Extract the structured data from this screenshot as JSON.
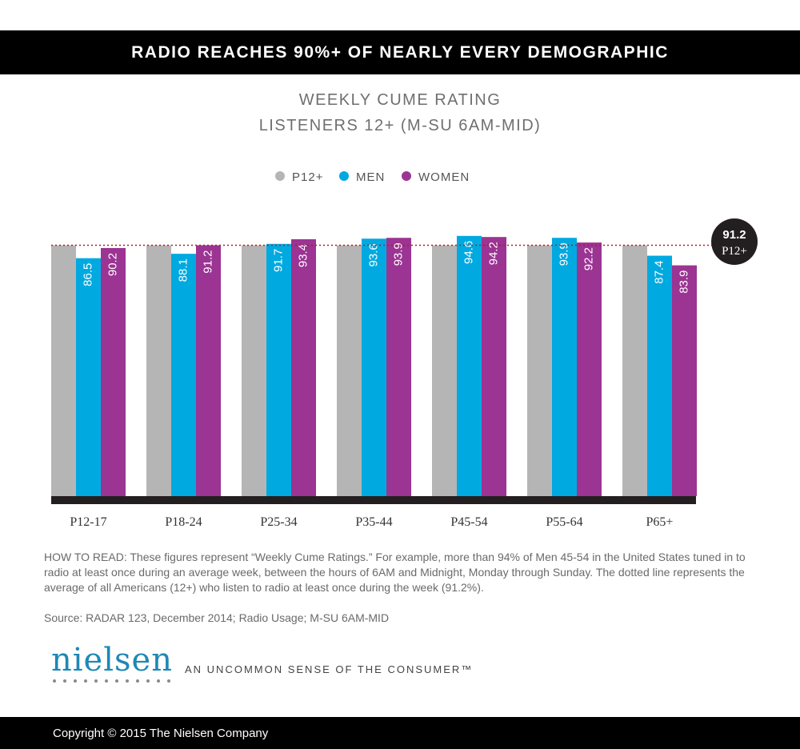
{
  "header": {
    "banner": "RADIO REACHES 90%+ OF NEARLY EVERY DEMOGRAPHIC"
  },
  "chart_data": {
    "type": "bar",
    "title": "WEEKLY CUME RATING",
    "subtitle": "LISTENERS 12+ (M-SU 6AM-MID)",
    "categories": [
      "P12-17",
      "P18-24",
      "P25-34",
      "P35-44",
      "P45-54",
      "P55-64",
      "P65+"
    ],
    "series": [
      {
        "name": "P12+",
        "color": "#b5b5b5",
        "values": [
          91.2,
          91.2,
          91.2,
          91.2,
          91.2,
          91.2,
          91.2
        ],
        "labels_shown": false
      },
      {
        "name": "MEN",
        "color": "#00a9e0",
        "values": [
          86.5,
          88.1,
          91.7,
          93.6,
          94.6,
          93.9,
          87.4
        ],
        "labels_shown": true
      },
      {
        "name": "WOMEN",
        "color": "#9b3493",
        "values": [
          90.2,
          91.2,
          93.4,
          93.9,
          94.2,
          92.2,
          83.9
        ],
        "labels_shown": true
      }
    ],
    "reference_line": {
      "value": 91.2,
      "label_value": "91.2",
      "label_text": "P12+",
      "color": "#b01e23"
    },
    "ylim": [
      0,
      96
    ],
    "xlabel": "",
    "ylabel": "",
    "legend_position": "top-center",
    "grid": false
  },
  "notes": {
    "how_to_read": "HOW TO READ: These figures represent “Weekly Cume Ratings.” For example, more than 94% of Men 45-54 in the United States tuned in to radio at least once during an average week, between the hours of 6AM and Midnight, Monday through Sunday. The dotted line represents the average of all Americans (12+) who listen to radio at least once during the week (91.2%).",
    "source": "Source: RADAR 123, December 2014; Radio Usage; M-SU 6AM-MID"
  },
  "branding": {
    "logo_text": "nielsen",
    "tagline": "AN UNCOMMON SENSE OF THE CONSUMER™"
  },
  "footer": {
    "copyright": "Copyright © 2015 The Nielsen Company"
  },
  "colors": {
    "banner_bg": "#000000",
    "logo_blue": "#1e88b4",
    "text_gray": "#6a6a6a"
  }
}
